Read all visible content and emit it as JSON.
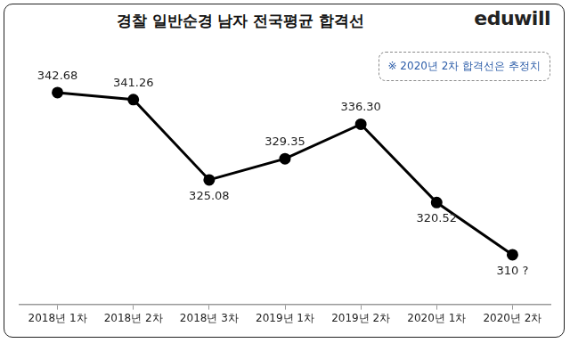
{
  "chart_data": {
    "type": "line",
    "title": "경찰 일반순경 남자 전국평균 합격선",
    "logo": "eduwill",
    "annotation": "※ 2020년 2차 합격선은 추정치",
    "categories": [
      "2018년 1차",
      "2018년 2차",
      "2018년 3차",
      "2019년 1차",
      "2019년 2차",
      "2020년 1차",
      "2020년 2차"
    ],
    "values": [
      342.68,
      341.26,
      325.08,
      329.35,
      336.3,
      320.52,
      310
    ],
    "value_labels": [
      "342.68",
      "341.26",
      "325.08",
      "329.35",
      "336.30",
      "320.52",
      "310 ?"
    ],
    "color": "#000000",
    "marker": "circle",
    "line_style": "solid",
    "data_labels": true,
    "tick_labels": "x",
    "grid": false,
    "ylim": [
      300,
      352
    ]
  }
}
